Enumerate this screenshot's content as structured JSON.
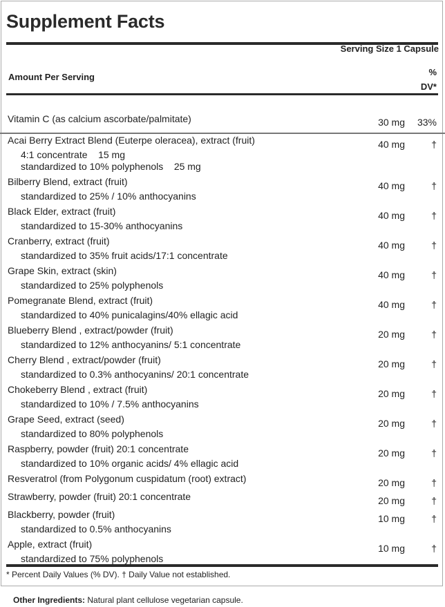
{
  "title": "Supplement Facts",
  "serving_size": "Serving Size 1 Capsule",
  "amount_per_serving": "Amount Per Serving",
  "dv_header": {
    "line1": "%",
    "line2": "DV*"
  },
  "vitamin": {
    "name": "Vitamin C (as calcium ascorbate/palmitate)",
    "amount": "30 mg",
    "dv": "33%"
  },
  "ingredients": [
    {
      "name": "Acai Berry Extract Blend (Euterpe oleracea), extract (fruit)",
      "amount": "40 mg",
      "dv": "†",
      "sub": [
        "4:1 concentrate    15 mg",
        "standardized to 10% polyphenols    25 mg"
      ]
    },
    {
      "name": "Bilberry Blend, extract (fruit)",
      "amount": "40 mg",
      "dv": "†",
      "sub": [
        "standardized to 25% / 10% anthocyanins"
      ]
    },
    {
      "name": "Black Elder, extract (fruit)",
      "amount": "40 mg",
      "dv": "†",
      "sub": [
        "standardized to 15-30% anthocyanins"
      ]
    },
    {
      "name": "Cranberry, extract (fruit)",
      "amount": "40 mg",
      "dv": "†",
      "sub": [
        "standardized to 35% fruit acids/17:1 concentrate"
      ]
    },
    {
      "name": "Grape Skin, extract (skin)",
      "amount": "40 mg",
      "dv": "†",
      "sub": [
        "standardized to 25% polyphenols"
      ]
    },
    {
      "name": "Pomegranate Blend, extract (fruit)",
      "amount": "40 mg",
      "dv": "†",
      "sub": [
        "standardized to 40% punicalagins/40% ellagic acid"
      ]
    },
    {
      "name": "Blueberry Blend , extract/powder (fruit)",
      "amount": "20 mg",
      "dv": "†",
      "sub": [
        "standardized to 12% anthocyanins/ 5:1 concentrate"
      ]
    },
    {
      "name": "Cherry Blend , extract/powder (fruit)",
      "amount": "20 mg",
      "dv": "†",
      "sub": [
        "standardized to 0.3% anthocyanins/ 20:1 concentrate"
      ]
    },
    {
      "name": "Chokeberry Blend , extract (fruit)",
      "amount": "20 mg",
      "dv": "†",
      "sub": [
        "standardized to 10% / 7.5% anthocyanins"
      ]
    },
    {
      "name": "Grape Seed, extract (seed)",
      "amount": "20 mg",
      "dv": "†",
      "sub": [
        "standardized to 80% polyphenols"
      ]
    },
    {
      "name": "Raspberry, powder (fruit) 20:1 concentrate",
      "amount": "20 mg",
      "dv": "†",
      "sub": [
        "standardized to 10% organic acids/ 4% ellagic acid"
      ]
    },
    {
      "name": "Resveratrol (from Polygonum cuspidatum (root) extract)",
      "amount": "20 mg",
      "dv": "†",
      "sub": []
    },
    {
      "name": "Strawberry, powder (fruit) 20:1 concentrate",
      "amount": "20 mg",
      "dv": "†",
      "sub": []
    },
    {
      "name": "Blackberry, powder (fruit)",
      "amount": "10 mg",
      "dv": "†",
      "sub": [
        "standardized to 0.5% anthocyanins"
      ]
    },
    {
      "name": "Apple, extract (fruit)",
      "amount": "10 mg",
      "dv": "†",
      "sub": [
        "standardized to 75% polyphenols"
      ]
    }
  ],
  "footnote": "* Percent Daily Values (% DV). † Daily Value not established.",
  "other_ingredients": {
    "label": "Other Ingredients:",
    "text": " Natural plant cellulose vegetarian capsule."
  }
}
